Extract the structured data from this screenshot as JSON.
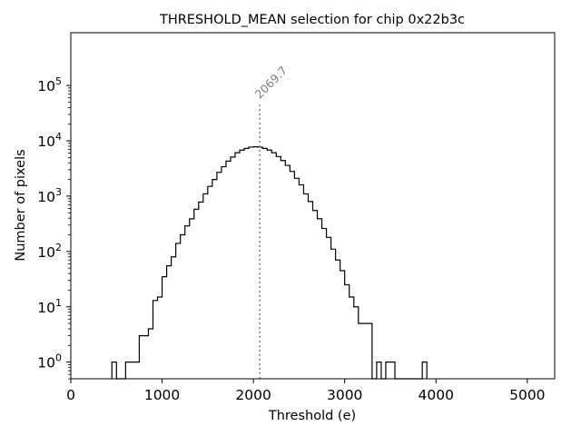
{
  "chart_data": {
    "type": "histogram",
    "title": "THRESHOLD_MEAN selection for chip 0x22b3c",
    "xlabel": "Threshold (e)",
    "ylabel": "Number of pixels",
    "xscale": "linear",
    "yscale": "log",
    "xlim": [
      0,
      5300
    ],
    "ylim": [
      0.5,
      900000
    ],
    "xticks": [
      {
        "value": 0,
        "label": "0"
      },
      {
        "value": 1000,
        "label": "1000"
      },
      {
        "value": 2000,
        "label": "2000"
      },
      {
        "value": 3000,
        "label": "3000"
      },
      {
        "value": 4000,
        "label": "4000"
      },
      {
        "value": 5000,
        "label": "5000"
      }
    ],
    "yticks": [
      {
        "value": 1,
        "base": "10",
        "exp": "0"
      },
      {
        "value": 10,
        "base": "10",
        "exp": "1"
      },
      {
        "value": 100,
        "base": "10",
        "exp": "2"
      },
      {
        "value": 1000,
        "base": "10",
        "exp": "3"
      },
      {
        "value": 10000,
        "base": "10",
        "exp": "4"
      },
      {
        "value": 100000,
        "base": "10",
        "exp": "5"
      }
    ],
    "histogram": {
      "bin_start": 450,
      "bin_width": 50,
      "counts": [
        1,
        0,
        0,
        1,
        1,
        1,
        3,
        3,
        4,
        13,
        15,
        35,
        55,
        80,
        140,
        200,
        290,
        390,
        580,
        780,
        1100,
        1500,
        2000,
        2700,
        3400,
        4300,
        5100,
        6100,
        6800,
        7300,
        7700,
        7800,
        7700,
        7300,
        6800,
        6100,
        5200,
        4400,
        3600,
        2800,
        2100,
        1600,
        1100,
        800,
        550,
        390,
        260,
        180,
        110,
        70,
        45,
        25,
        15,
        10,
        5,
        5,
        5,
        0,
        1,
        0,
        1,
        1,
        0,
        0,
        0,
        0,
        0,
        0,
        1
      ],
      "color": "#000000"
    },
    "marker": {
      "value": 2069.7,
      "label": "2069.7",
      "color": "#808080",
      "style": "dotted",
      "top_value": 45000
    }
  }
}
